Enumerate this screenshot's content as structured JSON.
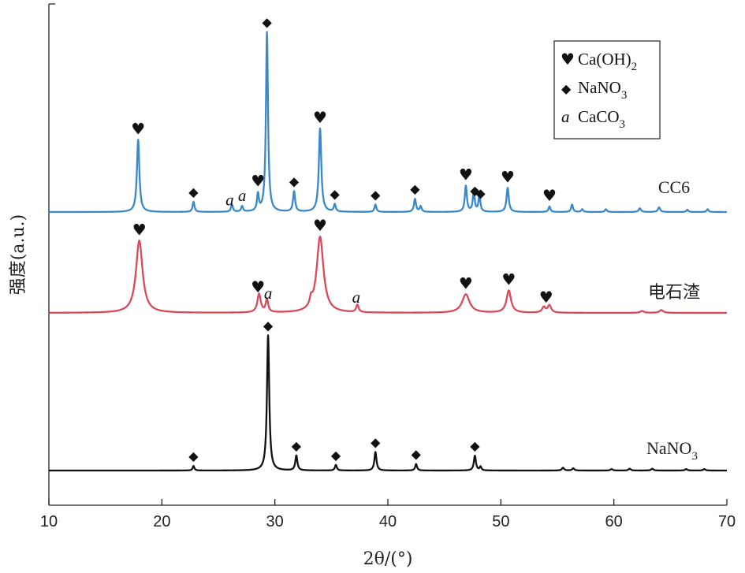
{
  "chart_data": {
    "type": "line",
    "xlabel": "2θ/(°)",
    "ylabel": "强度(a.u.)",
    "xlim": [
      10,
      70
    ],
    "xticks": [
      10,
      20,
      30,
      40,
      50,
      60,
      70
    ],
    "yticks": "none",
    "legend": {
      "placement": "top-right",
      "entries": [
        {
          "symbol": "♥",
          "label": "Ca(OH)",
          "sub": "2"
        },
        {
          "symbol": "◆",
          "label": "NaNO",
          "sub": "3"
        },
        {
          "symbol": "a",
          "label": "CaCO",
          "sub": "3"
        }
      ]
    },
    "series": [
      {
        "name": "CC6",
        "color": "#3a87c9",
        "peaks": [
          {
            "x": 17.9,
            "h": 0.39,
            "w": 0.13
          },
          {
            "x": 22.8,
            "h": 0.055,
            "w": 0.1
          },
          {
            "x": 26.2,
            "h": 0.04,
            "w": 0.1
          },
          {
            "x": 27.1,
            "h": 0.03,
            "w": 0.1
          },
          {
            "x": 28.5,
            "h": 0.09,
            "w": 0.1
          },
          {
            "x": 29.3,
            "h": 0.97,
            "w": 0.11
          },
          {
            "x": 31.7,
            "h": 0.11,
            "w": 0.11
          },
          {
            "x": 34.0,
            "h": 0.45,
            "w": 0.13
          },
          {
            "x": 35.3,
            "h": 0.04,
            "w": 0.1
          },
          {
            "x": 38.9,
            "h": 0.04,
            "w": 0.1
          },
          {
            "x": 42.4,
            "h": 0.07,
            "w": 0.11
          },
          {
            "x": 42.9,
            "h": 0.03,
            "w": 0.1
          },
          {
            "x": 46.9,
            "h": 0.14,
            "w": 0.11
          },
          {
            "x": 47.6,
            "h": 0.11,
            "w": 0.1
          },
          {
            "x": 48.1,
            "h": 0.09,
            "w": 0.1
          },
          {
            "x": 50.6,
            "h": 0.13,
            "w": 0.12
          },
          {
            "x": 54.3,
            "h": 0.03,
            "w": 0.1
          },
          {
            "x": 56.3,
            "h": 0.04,
            "w": 0.1
          },
          {
            "x": 57.2,
            "h": 0.015,
            "w": 0.1
          },
          {
            "x": 59.3,
            "h": 0.015,
            "w": 0.1
          },
          {
            "x": 62.3,
            "h": 0.02,
            "w": 0.12
          },
          {
            "x": 64.0,
            "h": 0.025,
            "w": 0.12
          },
          {
            "x": 66.5,
            "h": 0.012,
            "w": 0.1
          },
          {
            "x": 68.3,
            "h": 0.015,
            "w": 0.1
          }
        ],
        "markers": [
          {
            "x": 17.9,
            "type": "heart"
          },
          {
            "x": 22.8,
            "type": "diamond"
          },
          {
            "x": 26.0,
            "type": "a"
          },
          {
            "x": 27.1,
            "type": "a"
          },
          {
            "x": 28.5,
            "type": "heart"
          },
          {
            "x": 29.3,
            "type": "diamond"
          },
          {
            "x": 31.7,
            "type": "diamond"
          },
          {
            "x": 34.0,
            "type": "heart"
          },
          {
            "x": 35.3,
            "type": "diamond"
          },
          {
            "x": 38.9,
            "type": "diamond"
          },
          {
            "x": 42.4,
            "type": "diamond"
          },
          {
            "x": 46.9,
            "type": "heart"
          },
          {
            "x": 47.7,
            "type": "diamond"
          },
          {
            "x": 48.2,
            "type": "diamond"
          },
          {
            "x": 50.6,
            "type": "heart"
          },
          {
            "x": 54.3,
            "type": "heart"
          }
        ]
      },
      {
        "name": "电石渣",
        "color": "#d9495a",
        "peaks": [
          {
            "x": 18.0,
            "h": 0.39,
            "w": 0.35
          },
          {
            "x": 28.6,
            "h": 0.1,
            "w": 0.18
          },
          {
            "x": 29.3,
            "h": 0.07,
            "w": 0.13
          },
          {
            "x": 33.2,
            "h": 0.04,
            "w": 0.14
          },
          {
            "x": 34.0,
            "h": 0.41,
            "w": 0.36
          },
          {
            "x": 37.3,
            "h": 0.04,
            "w": 0.13
          },
          {
            "x": 46.9,
            "h": 0.1,
            "w": 0.4
          },
          {
            "x": 50.7,
            "h": 0.12,
            "w": 0.24
          },
          {
            "x": 53.8,
            "h": 0.03,
            "w": 0.18
          },
          {
            "x": 54.3,
            "h": 0.04,
            "w": 0.18
          },
          {
            "x": 62.5,
            "h": 0.01,
            "w": 0.2
          },
          {
            "x": 64.2,
            "h": 0.015,
            "w": 0.2
          }
        ],
        "markers": [
          {
            "x": 18.0,
            "type": "heart"
          },
          {
            "x": 28.5,
            "type": "heart"
          },
          {
            "x": 29.4,
            "type": "a"
          },
          {
            "x": 34.0,
            "type": "heart"
          },
          {
            "x": 37.2,
            "type": "a"
          },
          {
            "x": 46.9,
            "type": "heart"
          },
          {
            "x": 50.7,
            "type": "heart"
          },
          {
            "x": 54.0,
            "type": "heart"
          }
        ]
      },
      {
        "name": "NaNO3",
        "label_main": "NaNO",
        "label_sub": "3",
        "color": "#111111",
        "peaks": [
          {
            "x": 22.8,
            "h": 0.025,
            "w": 0.09
          },
          {
            "x": 29.4,
            "h": 0.73,
            "w": 0.12
          },
          {
            "x": 31.9,
            "h": 0.08,
            "w": 0.11
          },
          {
            "x": 35.4,
            "h": 0.03,
            "w": 0.1
          },
          {
            "x": 38.9,
            "h": 0.1,
            "w": 0.11
          },
          {
            "x": 42.5,
            "h": 0.035,
            "w": 0.1
          },
          {
            "x": 47.7,
            "h": 0.08,
            "w": 0.11
          },
          {
            "x": 48.2,
            "h": 0.02,
            "w": 0.09
          },
          {
            "x": 55.5,
            "h": 0.015,
            "w": 0.12
          },
          {
            "x": 56.4,
            "h": 0.012,
            "w": 0.12
          },
          {
            "x": 59.8,
            "h": 0.008,
            "w": 0.12
          },
          {
            "x": 61.4,
            "h": 0.01,
            "w": 0.12
          },
          {
            "x": 63.4,
            "h": 0.01,
            "w": 0.12
          },
          {
            "x": 66.4,
            "h": 0.008,
            "w": 0.12
          },
          {
            "x": 68.0,
            "h": 0.008,
            "w": 0.12
          }
        ],
        "markers": [
          {
            "x": 22.8,
            "type": "diamond"
          },
          {
            "x": 29.4,
            "type": "diamond"
          },
          {
            "x": 31.9,
            "type": "diamond"
          },
          {
            "x": 35.4,
            "type": "diamond"
          },
          {
            "x": 38.9,
            "type": "diamond"
          },
          {
            "x": 42.5,
            "type": "diamond"
          },
          {
            "x": 47.7,
            "type": "diamond"
          }
        ]
      }
    ]
  }
}
